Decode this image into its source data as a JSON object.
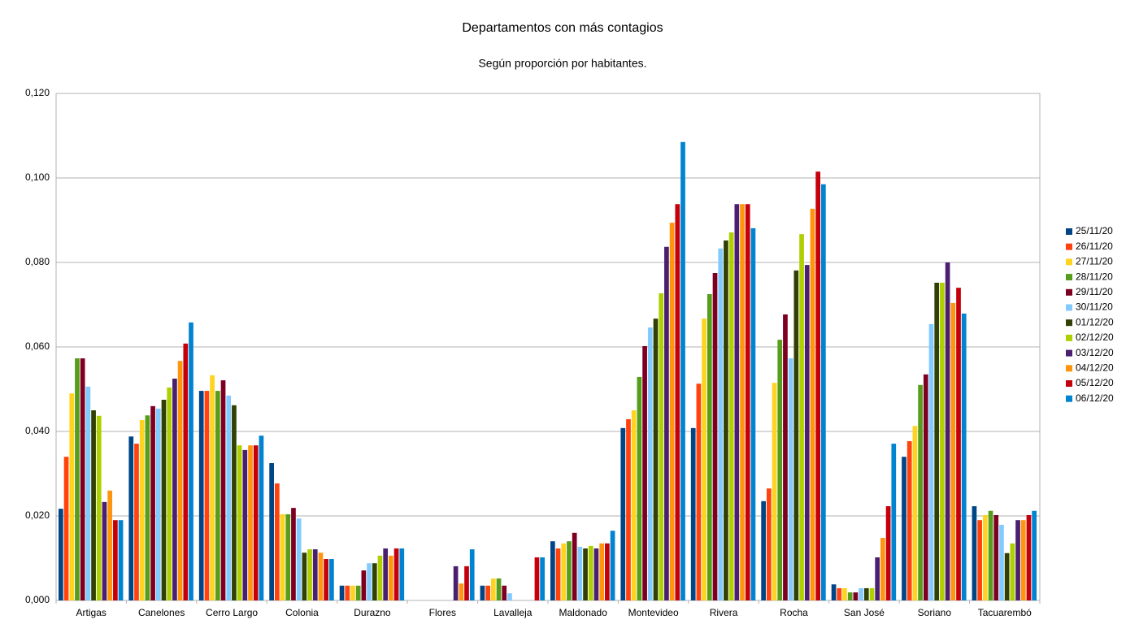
{
  "chart_data": {
    "type": "bar",
    "title": "Departamentos con más contagios",
    "subtitle": "Según proporción por habitantes.",
    "categories": [
      "Artigas",
      "Canelones",
      "Cerro Largo",
      "Colonia",
      "Durazno",
      "Flores",
      "Lavalleja",
      "Maldonado",
      "Montevideo",
      "Rivera",
      "Rocha",
      "San José",
      "Soriano",
      "Tacuarembó"
    ],
    "ylim": [
      0,
      0.12
    ],
    "yticks": [
      {
        "value": 0,
        "label": "0,000"
      },
      {
        "value": 0.02,
        "label": "0,020"
      },
      {
        "value": 0.04,
        "label": "0,040"
      },
      {
        "value": 0.06,
        "label": "0,060"
      },
      {
        "value": 0.08,
        "label": "0,080"
      },
      {
        "value": 0.1,
        "label": "0,100"
      },
      {
        "value": 0.12,
        "label": "0,120"
      }
    ],
    "grid": true,
    "legend": "right",
    "series": [
      {
        "name": "25/11/20",
        "color": "#004586",
        "values": [
          0.0217,
          0.0388,
          0.0496,
          0.0325,
          0.0035,
          0,
          0.0035,
          0.014,
          0.0408,
          0.0408,
          0.0235,
          0.0038,
          0.034,
          0.0223
        ]
      },
      {
        "name": "26/11/20",
        "color": "#ff420e",
        "values": [
          0.034,
          0.0371,
          0.0496,
          0.0277,
          0.0035,
          0,
          0.0035,
          0.0123,
          0.0429,
          0.0513,
          0.0265,
          0.0029,
          0.0377,
          0.019
        ]
      },
      {
        "name": "27/11/20",
        "color": "#ffd320",
        "values": [
          0.049,
          0.0427,
          0.0533,
          0.0204,
          0.0035,
          0,
          0.0052,
          0.0135,
          0.045,
          0.0667,
          0.0515,
          0.0029,
          0.0413,
          0.0202
        ]
      },
      {
        "name": "28/11/20",
        "color": "#579d1c",
        "values": [
          0.0573,
          0.0438,
          0.0496,
          0.0204,
          0.0035,
          0,
          0.0052,
          0.014,
          0.0529,
          0.0725,
          0.0617,
          0.0019,
          0.051,
          0.0212
        ]
      },
      {
        "name": "29/11/20",
        "color": "#7e0021",
        "values": [
          0.0573,
          0.046,
          0.0521,
          0.0219,
          0.0071,
          0,
          0.0035,
          0.016,
          0.0602,
          0.0775,
          0.0677,
          0.0019,
          0.0535,
          0.0202
        ]
      },
      {
        "name": "30/11/20",
        "color": "#83caff",
        "values": [
          0.0506,
          0.0454,
          0.0485,
          0.0194,
          0.0088,
          0,
          0.0017,
          0.0127,
          0.0646,
          0.0833,
          0.0573,
          0.0029,
          0.0654,
          0.0179
        ]
      },
      {
        "name": "01/12/20",
        "color": "#314004",
        "values": [
          0.045,
          0.0475,
          0.0462,
          0.0113,
          0.0088,
          0,
          0,
          0.0123,
          0.0667,
          0.0852,
          0.0781,
          0.0029,
          0.0752,
          0.0112
        ]
      },
      {
        "name": "02/12/20",
        "color": "#aecf00",
        "values": [
          0.0437,
          0.0504,
          0.0367,
          0.0121,
          0.0106,
          0,
          0,
          0.0129,
          0.0727,
          0.0871,
          0.0867,
          0.0029,
          0.0752,
          0.0135
        ]
      },
      {
        "name": "03/12/20",
        "color": "#4b1f6f",
        "values": [
          0.0233,
          0.0525,
          0.0356,
          0.0121,
          0.0123,
          0.0081,
          0,
          0.0123,
          0.0837,
          0.0938,
          0.0794,
          0.0102,
          0.08,
          0.019
        ]
      },
      {
        "name": "04/12/20",
        "color": "#ff950e",
        "values": [
          0.026,
          0.0567,
          0.0367,
          0.0113,
          0.0106,
          0.004,
          0,
          0.0135,
          0.0894,
          0.0938,
          0.0927,
          0.0148,
          0.0704,
          0.019
        ]
      },
      {
        "name": "05/12/20",
        "color": "#c5000b",
        "values": [
          0.019,
          0.0608,
          0.0367,
          0.0098,
          0.0123,
          0.0081,
          0.0102,
          0.0135,
          0.0938,
          0.0938,
          0.1015,
          0.0223,
          0.074,
          0.0202
        ]
      },
      {
        "name": "06/12/20",
        "color": "#0084d1",
        "values": [
          0.019,
          0.0658,
          0.039,
          0.0098,
          0.0123,
          0.0121,
          0.0102,
          0.0165,
          0.1085,
          0.0881,
          0.0985,
          0.0371,
          0.0679,
          0.0212
        ]
      }
    ]
  }
}
